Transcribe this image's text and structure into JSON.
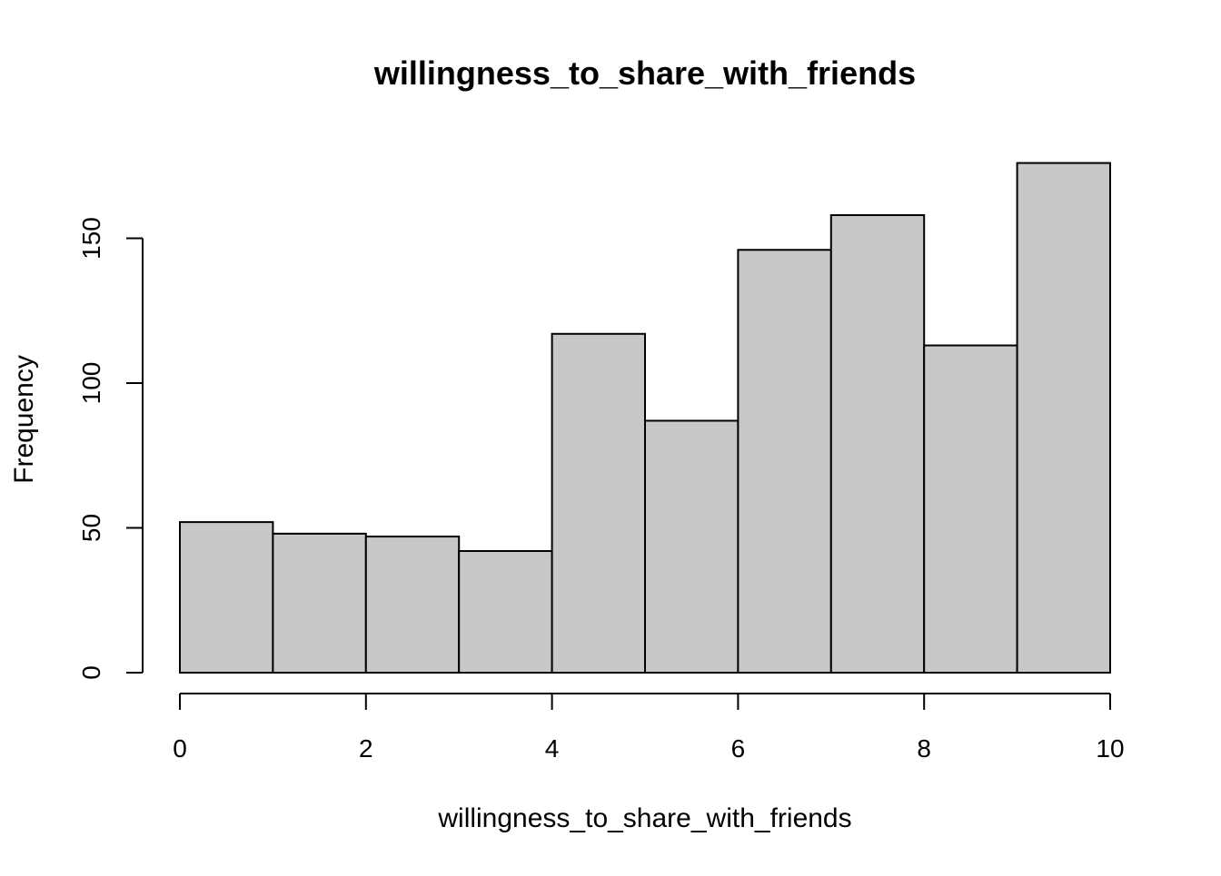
{
  "chart_data": {
    "type": "bar",
    "title": "willingness_to_share_with_friends",
    "xlabel": "willingness_to_share_with_friends",
    "ylabel": "Frequency",
    "bins": [
      {
        "start": 0,
        "end": 1,
        "count": 52
      },
      {
        "start": 1,
        "end": 2,
        "count": 48
      },
      {
        "start": 2,
        "end": 3,
        "count": 47
      },
      {
        "start": 3,
        "end": 4,
        "count": 42
      },
      {
        "start": 4,
        "end": 5,
        "count": 117
      },
      {
        "start": 5,
        "end": 6,
        "count": 87
      },
      {
        "start": 6,
        "end": 7,
        "count": 146
      },
      {
        "start": 7,
        "end": 8,
        "count": 158
      },
      {
        "start": 8,
        "end": 9,
        "count": 113
      },
      {
        "start": 9,
        "end": 10,
        "count": 176
      }
    ],
    "xlim": [
      0,
      10
    ],
    "x_ticks": [
      0,
      2,
      4,
      6,
      8,
      10
    ],
    "x_tick_labels": [
      "0",
      "2",
      "4",
      "6",
      "8",
      "10"
    ],
    "y_ticks": [
      0,
      50,
      100,
      150
    ],
    "y_tick_labels": [
      "0",
      "50",
      "100",
      "150"
    ],
    "grid": false,
    "bar_fill": "#c8c8c8",
    "bar_stroke": "#000000"
  }
}
